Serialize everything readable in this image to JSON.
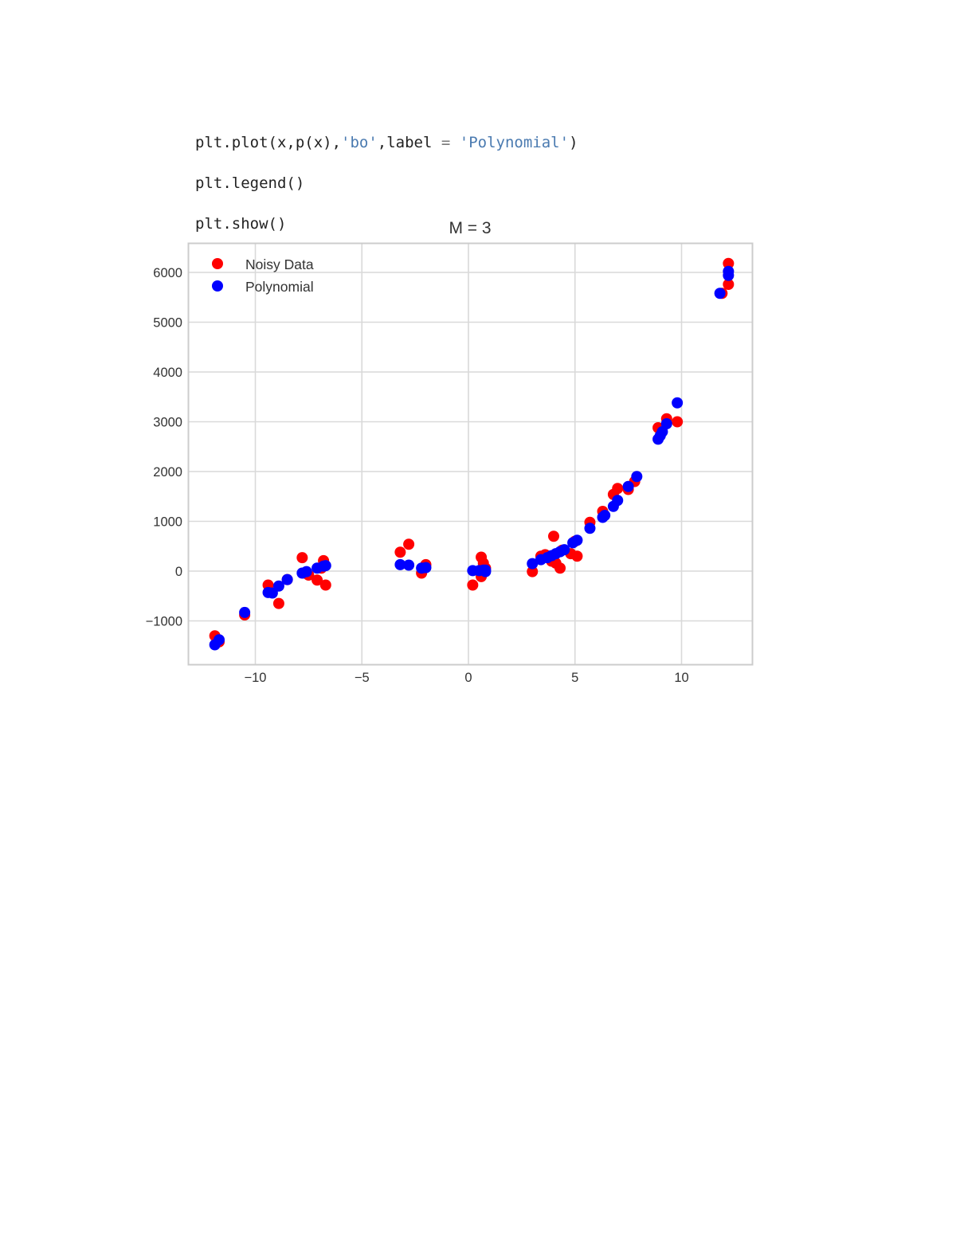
{
  "code": {
    "line1": {
      "a": "plt.plot(x,p(x),",
      "s1": "'bo'",
      "b": ",label ",
      "op": "=",
      "c": " ",
      "s2": "'Polynomial'",
      "d": ")"
    },
    "line2": "plt.legend()",
    "line3": "plt.show()"
  },
  "colors": {
    "noisy": "#ff0000",
    "poly": "#0000ff",
    "grid": "#d9d9d9",
    "text": "#333333"
  },
  "chart_data": {
    "type": "scatter",
    "title": "M = 3",
    "xlabel": "",
    "ylabel": "",
    "xlim": [
      -13.1,
      13.4
    ],
    "ylim": [
      -1900,
      6600
    ],
    "xticks": [
      -10,
      -5,
      0,
      5,
      10
    ],
    "xtick_labels": [
      "−10",
      "−5",
      "0",
      "5",
      "10"
    ],
    "yticks": [
      -1000,
      0,
      1000,
      2000,
      3000,
      4000,
      5000,
      6000
    ],
    "ytick_labels": [
      "−1000",
      "0",
      "1000",
      "2000",
      "3000",
      "4000",
      "5000",
      "6000"
    ],
    "grid": true,
    "legend_position": "upper left",
    "legend": [
      "Noisy Data",
      "Polynomial"
    ],
    "series": [
      {
        "name": "Noisy Data",
        "color": "#ff0000",
        "marker": "o",
        "points": [
          [
            -11.9,
            -1300
          ],
          [
            -11.7,
            -1420
          ],
          [
            -10.5,
            -880
          ],
          [
            -9.4,
            -280
          ],
          [
            -9.3,
            -420
          ],
          [
            -8.9,
            -650
          ],
          [
            -8.5,
            -170
          ],
          [
            -7.8,
            270
          ],
          [
            -7.7,
            -40
          ],
          [
            -7.5,
            -80
          ],
          [
            -7.1,
            -180
          ],
          [
            -6.8,
            210
          ],
          [
            -6.7,
            -280
          ],
          [
            -6.9,
            60
          ],
          [
            -3.2,
            380
          ],
          [
            -2.8,
            540
          ],
          [
            -2.2,
            -40
          ],
          [
            -2.0,
            130
          ],
          [
            -2.1,
            60
          ],
          [
            0.2,
            -280
          ],
          [
            0.6,
            -110
          ],
          [
            0.6,
            280
          ],
          [
            0.7,
            160
          ],
          [
            0.8,
            60
          ],
          [
            0.7,
            -10
          ],
          [
            3.0,
            -10
          ],
          [
            3.4,
            300
          ],
          [
            3.6,
            330
          ],
          [
            3.9,
            200
          ],
          [
            4.0,
            700
          ],
          [
            4.1,
            160
          ],
          [
            4.3,
            60
          ],
          [
            4.4,
            420
          ],
          [
            4.8,
            350
          ],
          [
            5.0,
            600
          ],
          [
            5.1,
            300
          ],
          [
            5.7,
            980
          ],
          [
            6.3,
            1200
          ],
          [
            6.8,
            1540
          ],
          [
            7.0,
            1660
          ],
          [
            7.5,
            1640
          ],
          [
            7.8,
            1800
          ],
          [
            8.9,
            2880
          ],
          [
            9.3,
            3060
          ],
          [
            9.8,
            3000
          ],
          [
            11.9,
            5580
          ],
          [
            12.2,
            5760
          ],
          [
            12.2,
            6180
          ]
        ]
      },
      {
        "name": "Polynomial",
        "color": "#0000ff",
        "marker": "o",
        "points": [
          [
            -11.9,
            -1480
          ],
          [
            -11.7,
            -1380
          ],
          [
            -10.5,
            -830
          ],
          [
            -9.4,
            -430
          ],
          [
            -9.2,
            -440
          ],
          [
            -8.9,
            -300
          ],
          [
            -8.5,
            -170
          ],
          [
            -7.8,
            -40
          ],
          [
            -7.6,
            -10
          ],
          [
            -7.1,
            60
          ],
          [
            -6.8,
            100
          ],
          [
            -6.7,
            110
          ],
          [
            -3.2,
            130
          ],
          [
            -2.8,
            120
          ],
          [
            -2.2,
            60
          ],
          [
            -2.0,
            70
          ],
          [
            0.2,
            10
          ],
          [
            0.5,
            10
          ],
          [
            0.7,
            20
          ],
          [
            0.8,
            20
          ],
          [
            0.8,
            -10
          ],
          [
            3.0,
            150
          ],
          [
            3.4,
            230
          ],
          [
            3.7,
            270
          ],
          [
            3.9,
            310
          ],
          [
            4.1,
            350
          ],
          [
            4.3,
            390
          ],
          [
            4.5,
            430
          ],
          [
            4.9,
            570
          ],
          [
            5.1,
            620
          ],
          [
            5.7,
            860
          ],
          [
            6.3,
            1080
          ],
          [
            6.4,
            1120
          ],
          [
            6.8,
            1300
          ],
          [
            7.0,
            1420
          ],
          [
            7.5,
            1700
          ],
          [
            7.9,
            1900
          ],
          [
            8.9,
            2650
          ],
          [
            9.0,
            2720
          ],
          [
            9.1,
            2800
          ],
          [
            9.3,
            2960
          ],
          [
            9.8,
            3380
          ],
          [
            11.8,
            5580
          ],
          [
            12.2,
            5940
          ],
          [
            12.2,
            6020
          ]
        ]
      }
    ]
  }
}
